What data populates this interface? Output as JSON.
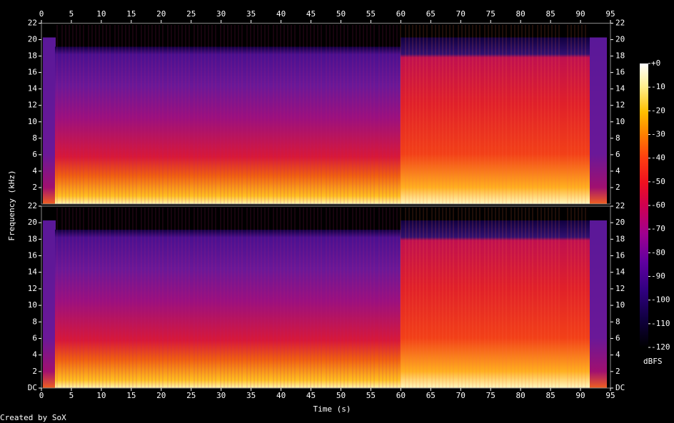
{
  "chart_data": {
    "type": "spectrogram",
    "x_label": "Time (s)",
    "y_label": "Frequency (kHz)",
    "xlim": [
      0,
      95
    ],
    "xticks": [
      0,
      5,
      10,
      15,
      20,
      25,
      30,
      35,
      40,
      45,
      50,
      55,
      60,
      65,
      70,
      75,
      80,
      85,
      90,
      95
    ],
    "panels": [
      {
        "ylim": [
          0,
          22
        ],
        "yticks": [
          2,
          4,
          6,
          8,
          10,
          12,
          14,
          16,
          18,
          20,
          22
        ]
      },
      {
        "ylim": [
          0,
          22
        ],
        "yticks": [
          {
            "value": 0,
            "label": "DC"
          },
          2,
          4,
          6,
          8,
          10,
          12,
          14,
          16,
          18,
          20,
          22
        ]
      }
    ],
    "colorbar": {
      "label": "dBFS",
      "lim": [
        -120,
        0
      ],
      "ticks": [
        {
          "value": 0,
          "label": "+0"
        },
        -10,
        -20,
        -30,
        -40,
        -50,
        -60,
        -70,
        -80,
        -90,
        -100,
        -110,
        -120
      ]
    },
    "footer": "Created by SoX"
  }
}
